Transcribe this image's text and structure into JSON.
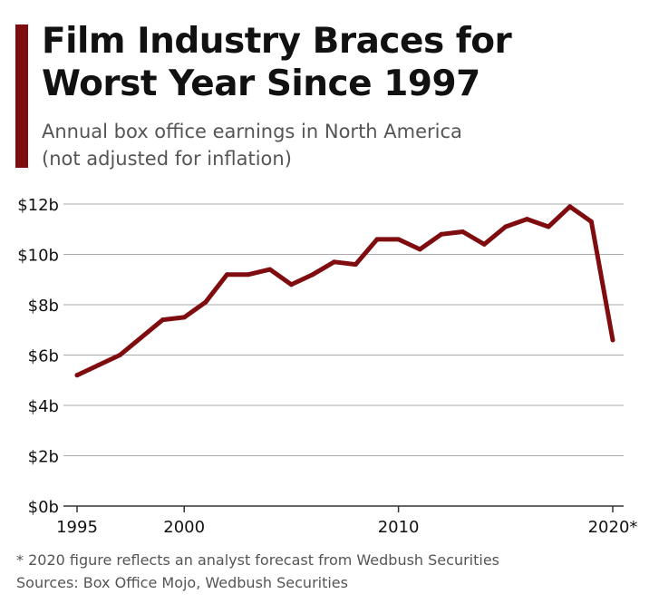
{
  "header": {
    "title_lines": [
      "Film Industry Braces for",
      "Worst Year Since 1997"
    ],
    "subtitle_lines": [
      "Annual box office earnings in North America",
      "(not adjusted for inflation)"
    ]
  },
  "colors": {
    "accent": "#7f0d10",
    "line": "#7f0d10",
    "grid": "#aaaaaa",
    "text": "#111111",
    "muted": "#555555"
  },
  "chart_data": {
    "type": "line",
    "title": "Film Industry Braces for Worst Year Since 1997",
    "subtitle": "Annual box office earnings in North America (not adjusted for inflation)",
    "xlabel": "",
    "ylabel": "",
    "x": [
      1995,
      1996,
      1997,
      1998,
      1999,
      2000,
      2001,
      2002,
      2003,
      2004,
      2005,
      2006,
      2007,
      2008,
      2009,
      2010,
      2011,
      2012,
      2013,
      2014,
      2015,
      2016,
      2017,
      2018,
      2019,
      2020
    ],
    "series": [
      {
        "values": [
          5.2,
          5.6,
          6.0,
          6.7,
          7.4,
          7.5,
          8.1,
          9.2,
          9.2,
          9.4,
          8.8,
          9.2,
          9.7,
          9.6,
          10.6,
          10.6,
          10.2,
          10.8,
          10.9,
          10.4,
          11.1,
          11.4,
          11.1,
          11.9,
          11.3,
          6.6
        ]
      }
    ],
    "xlim": [
      1995,
      2020
    ],
    "ylim": [
      0,
      12
    ],
    "y_ticks": [
      0,
      2,
      4,
      6,
      8,
      10,
      12
    ],
    "y_tick_labels": [
      "$0b",
      "$2b",
      "$4b",
      "$6b",
      "$8b",
      "$10b",
      "$12b"
    ],
    "x_ticks": [
      1995,
      2000,
      2010,
      2020
    ],
    "x_tick_labels": [
      "1995",
      "2000",
      "2010",
      "2020*"
    ],
    "grid": true,
    "legend": "none"
  },
  "footer": {
    "note": "* 2020 figure reflects an analyst forecast from Wedbush Securities",
    "sources": "Sources: Box Office Mojo, Wedbush Securities"
  }
}
